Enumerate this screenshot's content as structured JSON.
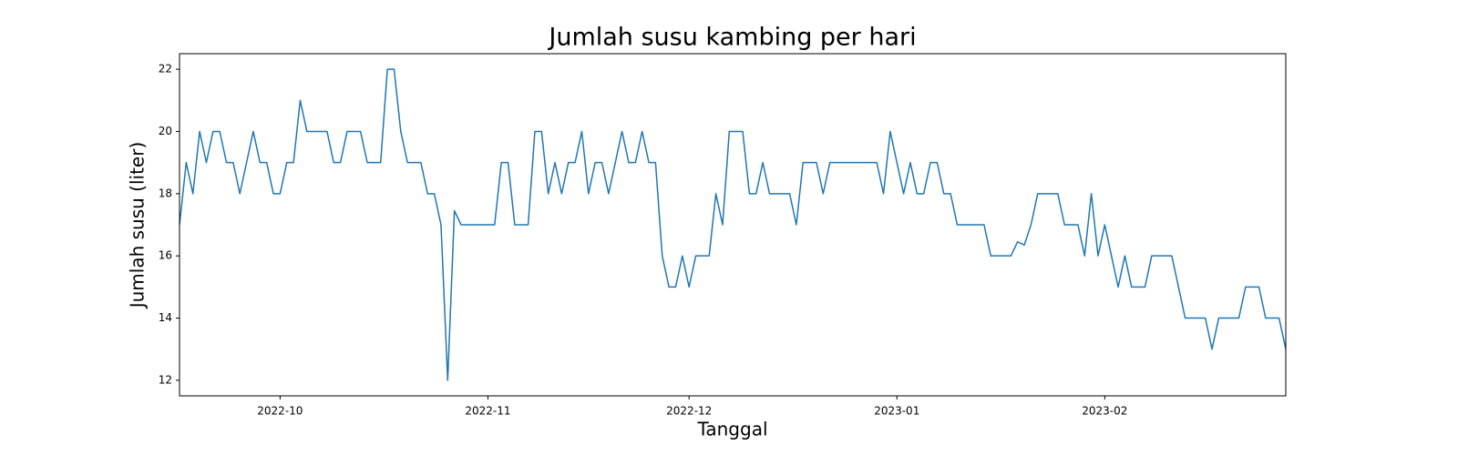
{
  "chart_data": {
    "type": "line",
    "title": "Jumlah susu kambing per hari",
    "x_label": "Tanggal",
    "y_label": "Jumlah susu (liter)",
    "x": [
      0,
      1,
      2,
      3,
      4,
      5,
      6,
      7,
      8,
      9,
      10,
      11,
      12,
      13,
      14,
      15,
      16,
      17,
      18,
      19,
      20,
      21,
      22,
      23,
      24,
      25,
      26,
      27,
      28,
      29,
      30,
      31,
      32,
      33,
      34,
      35,
      36,
      37,
      38,
      39,
      40,
      41,
      42,
      43,
      44,
      45,
      46,
      47,
      48,
      49,
      50,
      51,
      52,
      53,
      54,
      55,
      56,
      57,
      58,
      59,
      60,
      61,
      62,
      63,
      64,
      65,
      66,
      67,
      68,
      69,
      70,
      71,
      72,
      73,
      74,
      75,
      76,
      77,
      78,
      79,
      80,
      81,
      82,
      83,
      84,
      85,
      86,
      87,
      88,
      89,
      90,
      91,
      92,
      93,
      94,
      95,
      96,
      97,
      98,
      99,
      100,
      101,
      102,
      103,
      104,
      105,
      106,
      107,
      108,
      109,
      110,
      111,
      112,
      113,
      114,
      115,
      116,
      117,
      118,
      119,
      120,
      121,
      122,
      123,
      124,
      125,
      126,
      127,
      128,
      129,
      130,
      131,
      132,
      133,
      134,
      135,
      136,
      137,
      138,
      139,
      140,
      141,
      142,
      143,
      144,
      145,
      146,
      147,
      148,
      149,
      150,
      151,
      152,
      153,
      154,
      155,
      156,
      157,
      158,
      159,
      160,
      161,
      162,
      163,
      164,
      165
    ],
    "series": [
      {
        "color": "#1f77b4",
        "values": [
          17,
          19,
          18,
          20,
          19,
          20,
          20,
          19,
          19,
          18,
          19,
          20,
          19,
          19,
          18,
          18,
          19,
          19,
          21,
          20,
          20,
          20,
          20,
          19,
          19,
          20,
          20,
          20,
          19,
          19,
          19,
          22,
          22,
          20,
          19,
          19,
          19,
          18,
          18,
          17,
          12,
          17.45,
          17,
          17,
          17,
          17,
          17,
          17,
          19,
          19,
          17,
          17,
          17,
          20,
          20,
          18,
          19,
          18,
          19,
          19,
          20,
          18,
          19,
          19,
          18,
          19,
          20,
          19,
          19,
          20,
          19,
          19,
          16,
          15,
          15,
          16,
          15,
          16,
          16,
          16,
          18,
          17,
          20,
          20,
          20,
          18,
          18,
          19,
          18,
          18,
          18,
          18,
          17,
          19,
          19,
          19,
          18,
          19,
          19,
          19,
          19,
          19,
          19,
          19,
          19,
          18,
          20,
          19,
          18,
          19,
          18,
          18,
          19,
          19,
          18,
          18,
          17,
          17,
          17,
          17,
          17,
          16,
          16,
          16,
          16,
          16.45,
          16.35,
          17,
          18,
          18,
          18,
          18,
          17,
          17,
          17,
          16,
          18,
          16,
          17,
          16,
          15,
          16,
          15,
          15,
          15,
          16,
          16,
          16,
          16,
          15,
          14,
          14,
          14,
          14,
          13,
          14,
          14,
          14,
          14,
          15,
          15,
          15,
          14,
          14,
          14,
          13
        ]
      }
    ],
    "xlim": [
      0,
      165
    ],
    "xticks": [
      {
        "value": 15,
        "label": "2022-10"
      },
      {
        "value": 46,
        "label": "2022-11"
      },
      {
        "value": 76,
        "label": "2022-12"
      },
      {
        "value": 107,
        "label": "2023-01"
      },
      {
        "value": 138,
        "label": "2023-02"
      }
    ],
    "ylim": [
      11.5,
      22.5
    ],
    "yticks": [
      12,
      14,
      16,
      18,
      20,
      22
    ],
    "grid": false
  }
}
